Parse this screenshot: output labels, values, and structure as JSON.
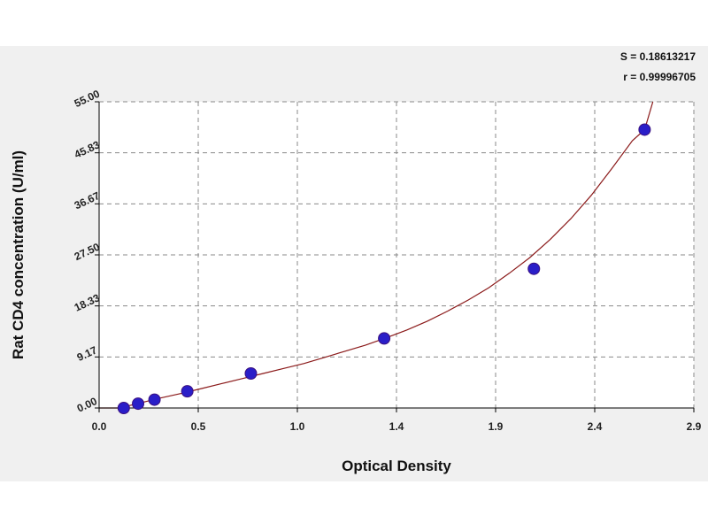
{
  "chart_data": {
    "type": "scatter",
    "title": "",
    "xlabel": "Optical Density",
    "ylabel": "Rat CD4 concentration (U/ml)",
    "x_ticks": [
      "0.0",
      "0.5",
      "1.0",
      "1.4",
      "1.9",
      "2.4",
      "2.9"
    ],
    "y_ticks": [
      "0.00",
      "9.17",
      "18.33",
      "27.50",
      "36.67",
      "45.83",
      "55.00"
    ],
    "xlim": [
      0.0,
      2.9
    ],
    "ylim": [
      0.0,
      55.0
    ],
    "grid": true,
    "stats": {
      "s": "S = 0.18613217",
      "r": "r = 0.99996705"
    },
    "series": [
      {
        "x": [
          0.12,
          0.19,
          0.27,
          0.43,
          0.74,
          1.39,
          2.12,
          2.66
        ],
        "y": [
          0.0,
          0.78,
          1.5,
          3.0,
          6.2,
          12.5,
          25.0,
          50.0
        ]
      }
    ],
    "fit_curve": {
      "x": [
        0.0,
        0.1,
        0.2,
        0.3,
        0.4,
        0.5,
        0.6,
        0.7,
        0.8,
        0.9,
        1.0,
        1.1,
        1.2,
        1.3,
        1.4,
        1.5,
        1.6,
        1.7,
        1.8,
        1.9,
        2.0,
        2.1,
        2.2,
        2.3,
        2.4,
        2.5,
        2.6,
        2.66,
        2.7
      ],
      "y": [
        0.0,
        0.0,
        0.9,
        1.8,
        2.6,
        3.5,
        4.4,
        5.3,
        6.2,
        7.1,
        8.0,
        9.1,
        10.2,
        11.3,
        12.6,
        14.0,
        15.6,
        17.4,
        19.4,
        21.6,
        24.2,
        27.0,
        30.3,
        34.0,
        38.2,
        43.0,
        48.0,
        50.0,
        55.0
      ]
    },
    "colors": {
      "point_fill": "#2a1ec8",
      "curve": "#8b1a1a",
      "frame_background": "#f0f0f0"
    }
  }
}
